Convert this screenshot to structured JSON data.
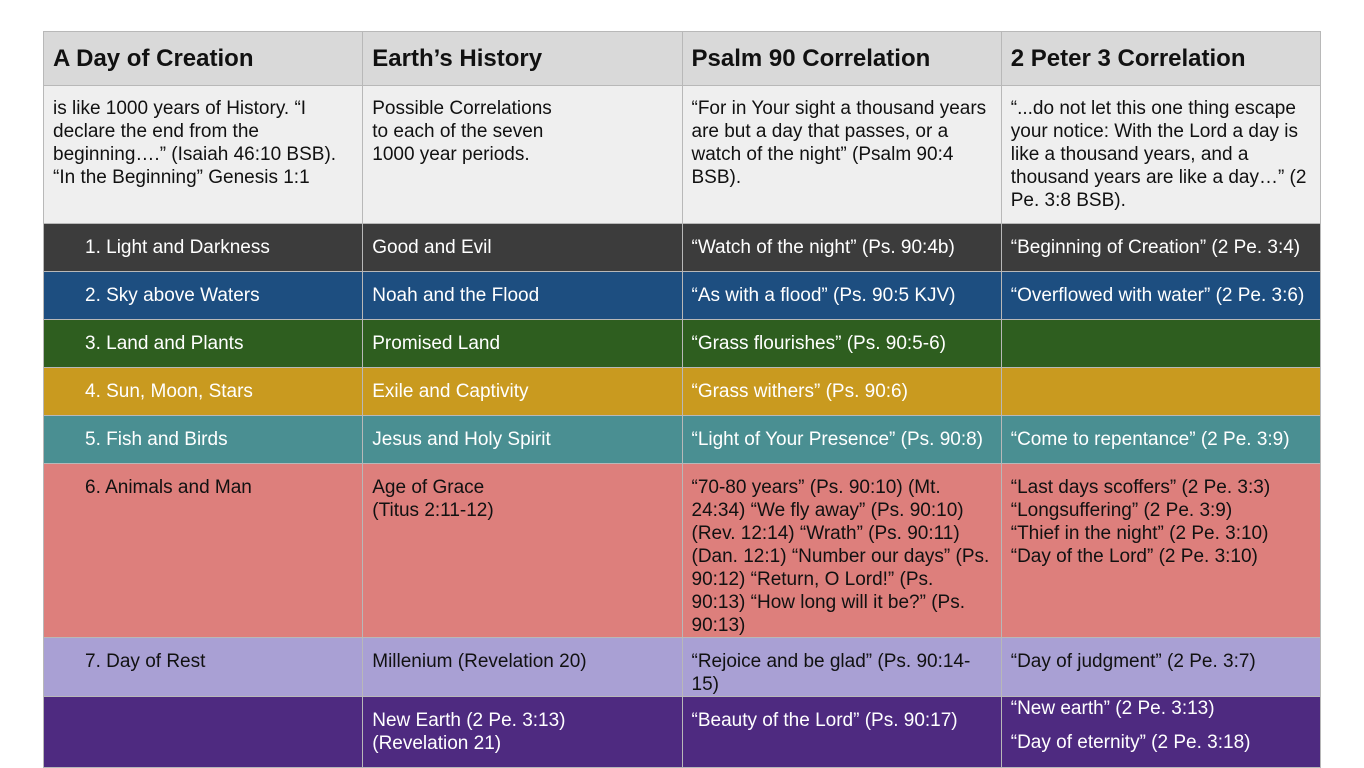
{
  "table": {
    "header": [
      "A Day of Creation",
      "Earth’s History",
      "Psalm 90 Correlation",
      "2 Peter 3 Correlation"
    ],
    "rows": [
      [
        "is like 1000 years of History. “I declare the end from the beginning….” (Isaiah 46:10 BSB). “In the Beginning” Genesis 1:1",
        [
          "Possible Correlations",
          "to each of the seven",
          "1000 year periods."
        ],
        "“For in Your sight a thousand years are but a day that passes, or a watch of the night” (Psalm 90:4 BSB).",
        "“...do not let this one thing escape your notice: With the Lord a day is like a thousand years, and a thousand years are like a day…” (2 Pe. 3:8 BSB)."
      ],
      [
        "1. Light and Darkness",
        "Good and Evil",
        "“Watch of the night” (Ps. 90:4b)",
        "“Beginning of Creation” (2 Pe. 3:4)"
      ],
      [
        "2. Sky above Waters",
        "Noah and the Flood",
        "“As with a flood” (Ps. 90:5 KJV)",
        "“Overflowed with water” (2 Pe. 3:6)"
      ],
      [
        "3. Land and Plants",
        "Promised Land",
        "“Grass flourishes” (Ps. 90:5-6)",
        null
      ],
      [
        "4. Sun, Moon, Stars",
        "Exile and Captivity",
        "“Grass withers” (Ps. 90:6)",
        null
      ],
      [
        "5. Fish and Birds",
        "Jesus and Holy Spirit",
        "“Light of Your Presence” (Ps. 90:8)",
        "“Come to repentance” (2 Pe. 3:9)"
      ],
      [
        "6. Animals and Man",
        [
          "Age of Grace",
          "(Titus 2:11-12)"
        ],
        "“70-80 years” (Ps. 90:10) (Mt. 24:34) “We fly away” (Ps. 90:10) (Rev. 12:14) “Wrath” (Ps. 90:11) (Dan. 12:1) “Number our days” (Ps. 90:12) “Return, O Lord!” (Ps. 90:13) “How long will it be?” (Ps. 90:13)",
        [
          "“Last days scoffers” (2 Pe. 3:3)",
          "“Longsuffering” (2 Pe. 3:9)",
          "“Thief in the night” (2 Pe. 3:10)",
          "“Day of the Lord” (2 Pe. 3:10)"
        ]
      ],
      [
        "7. Day of Rest",
        "Millenium (Revelation 20)",
        "“Rejoice and be glad” (Ps. 90:14-15)",
        "“Day of judgment” (2 Pe. 3:7)"
      ],
      [
        null,
        [
          "New Earth (2 Pe. 3:13)",
          "(Revelation 21)"
        ],
        "“Beauty of the Lord” (Ps. 90:17)",
        [
          "“New earth” (2 Pe. 3:13)",
          "“Day of eternity” (2 Pe. 3:18)"
        ]
      ]
    ]
  }
}
